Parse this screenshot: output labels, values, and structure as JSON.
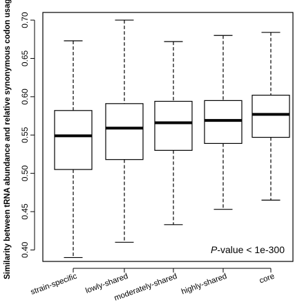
{
  "chart_data": {
    "type": "box",
    "title": "",
    "xlabel": "",
    "ylabel": "Similarity between tRNA abundance and relative synonymous codon usage",
    "ylim": [
      0.385,
      0.71
    ],
    "y_ticks": [
      0.4,
      0.45,
      0.5,
      0.55,
      0.6,
      0.65,
      0.7
    ],
    "y_tick_labels": [
      "0.40",
      "0.45",
      "0.50",
      "0.55",
      "0.60",
      "0.65",
      "0.70"
    ],
    "categories": [
      "strain-specific",
      "lowly-shared",
      "moderately-shared",
      "highly-shared",
      "core"
    ],
    "boxes": [
      {
        "category": "strain-specific",
        "min": 0.39,
        "q1": 0.505,
        "median": 0.549,
        "q3": 0.582,
        "max": 0.673
      },
      {
        "category": "lowly-shared",
        "min": 0.41,
        "q1": 0.518,
        "median": 0.559,
        "q3": 0.591,
        "max": 0.7
      },
      {
        "category": "moderately-shared",
        "min": 0.433,
        "q1": 0.53,
        "median": 0.566,
        "q3": 0.594,
        "max": 0.672
      },
      {
        "category": "highly-shared",
        "min": 0.453,
        "q1": 0.539,
        "median": 0.569,
        "q3": 0.595,
        "max": 0.68
      },
      {
        "category": "core",
        "min": 0.465,
        "q1": 0.547,
        "median": 0.577,
        "q3": 0.602,
        "max": 0.684
      }
    ],
    "annotation": {
      "p_italic": "P",
      "rest": "-value < 1e-300"
    },
    "grid": false,
    "legend": "none"
  }
}
